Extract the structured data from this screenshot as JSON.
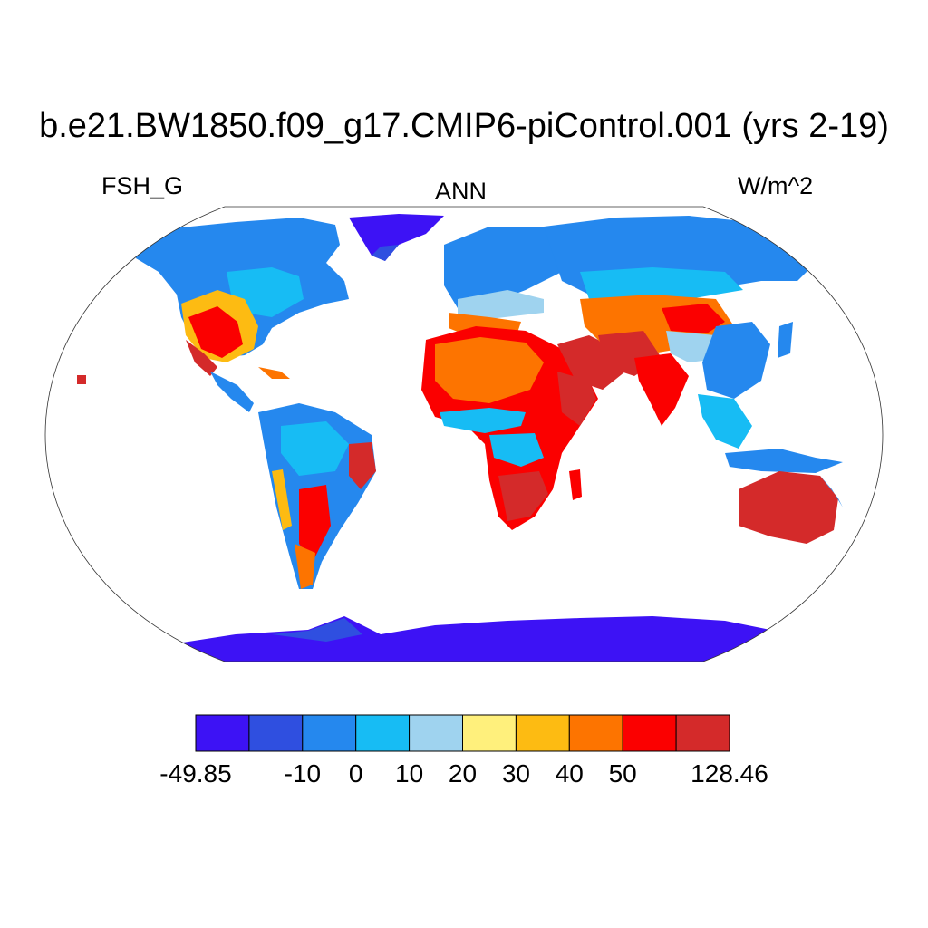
{
  "title": "b.e21.BW1850.f09_g17.CMIP6-piControl.001 (yrs 2-19)",
  "subtitle_left": "FSH_G",
  "subtitle_center": "ANN",
  "subtitle_right": "W/m^2",
  "colorbar": {
    "colors": [
      "#3d12f5",
      "#2f4fe0",
      "#2588ee",
      "#17bcf4",
      "#9fd3ef",
      "#fff07c",
      "#fdbb12",
      "#fd7400",
      "#fb0000",
      "#d42a2a"
    ],
    "labels": [
      "-49.85",
      "-10",
      "0",
      "10",
      "20",
      "30",
      "40",
      "50",
      "128.46"
    ]
  },
  "regions": [
    {
      "name": "Antarctica",
      "value": -45
    },
    {
      "name": "Greenland",
      "value": -45
    },
    {
      "name": "North America (boreal)",
      "value": -5
    },
    {
      "name": "Southwest North America",
      "value": 60
    },
    {
      "name": "Sahara",
      "value": 60
    },
    {
      "name": "Arabia",
      "value": 80
    },
    {
      "name": "Central Asia (Gobi)",
      "value": 60
    },
    {
      "name": "Siberia",
      "value": -5
    },
    {
      "name": "Amazon",
      "value": 5
    },
    {
      "name": "Congo Basin",
      "value": 15
    },
    {
      "name": "Southern Africa",
      "value": 55
    },
    {
      "name": "Australia",
      "value": 60
    },
    {
      "name": "Southeast Asia",
      "value": 0
    }
  ]
}
